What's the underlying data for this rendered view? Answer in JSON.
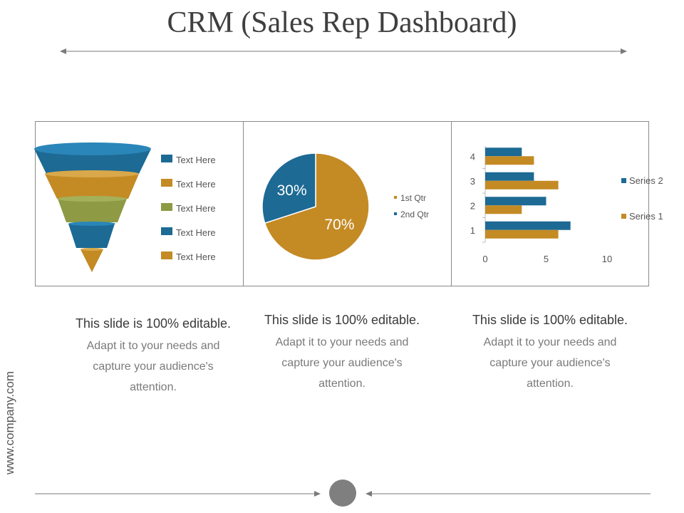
{
  "title": "CRM (Sales Rep Dashboard)",
  "footer_url": "www.company.com",
  "colors": {
    "blue": "#1d6a94",
    "gold": "#c48a24",
    "olive": "#8e9a44",
    "gray": "#8a8a8a"
  },
  "funnel": {
    "legend": [
      {
        "label": "Text Here",
        "color": "#1d6a94"
      },
      {
        "label": "Text Here",
        "color": "#c48a24"
      },
      {
        "label": "Text Here",
        "color": "#8e9a44"
      },
      {
        "label": "Text Here",
        "color": "#1d6a94"
      },
      {
        "label": "Text Here",
        "color": "#c48a24"
      }
    ]
  },
  "chart_data": [
    {
      "type": "pie",
      "title": "",
      "slices": [
        {
          "label": "1st Qtr",
          "value": 70,
          "display": "70%",
          "color": "#c48a24"
        },
        {
          "label": "2nd Qtr",
          "value": 30,
          "display": "30%",
          "color": "#1d6a94"
        }
      ],
      "legend": [
        "1st Qtr",
        "2nd Qtr"
      ]
    },
    {
      "type": "bar",
      "orientation": "horizontal",
      "categories": [
        "1",
        "2",
        "3",
        "4"
      ],
      "series": [
        {
          "name": "Series 1",
          "values": [
            6,
            3,
            6,
            4
          ],
          "color": "#c48a24"
        },
        {
          "name": "Series 2",
          "values": [
            7,
            5,
            4,
            3
          ],
          "color": "#1d6a94"
        }
      ],
      "xlim": [
        0,
        10
      ],
      "xticks": [
        "0",
        "5",
        "10"
      ],
      "legend": [
        "Series 2",
        "Series 1"
      ],
      "grid": false
    }
  ],
  "captions": [
    {
      "heading": "This slide is 100% editable.",
      "body_lines": [
        "Adapt it to your needs and",
        "capture your audience's",
        "attention."
      ]
    },
    {
      "heading": "This slide is 100% editable.",
      "body_lines": [
        "Adapt it to your needs and",
        "capture your audience's",
        "attention."
      ]
    },
    {
      "heading": "This slide is 100% editable.",
      "body_lines": [
        "Adapt it to your needs and",
        "capture your audience's",
        "attention."
      ]
    }
  ]
}
